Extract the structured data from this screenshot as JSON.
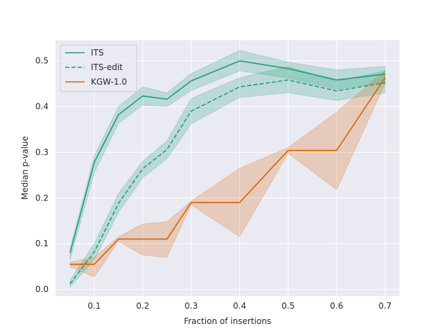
{
  "chart_data": {
    "type": "line",
    "title": "",
    "xlabel": "Fraction of insertions",
    "ylabel": "Median p-value",
    "xlim": [
      0.02,
      0.73
    ],
    "ylim": [
      -0.015,
      0.545
    ],
    "xticks": [
      0.1,
      0.2,
      0.3,
      0.4,
      0.5,
      0.6,
      0.7
    ],
    "xtick_labels": [
      "0.1",
      "0.2",
      "0.3",
      "0.4",
      "0.5",
      "0.6",
      "0.7"
    ],
    "yticks": [
      0.0,
      0.1,
      0.2,
      0.3,
      0.4,
      0.5
    ],
    "ytick_labels": [
      "0.0",
      "0.1",
      "0.2",
      "0.3",
      "0.4",
      "0.5"
    ],
    "grid": true,
    "legend_position": "top-left",
    "x": [
      0.05,
      0.1,
      0.15,
      0.2,
      0.25,
      0.3,
      0.4,
      0.5,
      0.6,
      0.7
    ],
    "series": [
      {
        "name": "ITS",
        "color": "#1b9e77",
        "dash": "solid",
        "values": [
          0.08,
          0.278,
          0.382,
          0.423,
          0.416,
          0.456,
          0.5,
          0.483,
          0.458,
          0.471
        ],
        "lower": [
          0.065,
          0.255,
          0.363,
          0.403,
          0.4,
          0.435,
          0.478,
          0.462,
          0.438,
          0.452
        ],
        "upper": [
          0.09,
          0.292,
          0.4,
          0.443,
          0.43,
          0.472,
          0.523,
          0.497,
          0.48,
          0.488
        ]
      },
      {
        "name": "ITS-edit",
        "color": "#1b9e77",
        "dash": "dashed",
        "values": [
          0.012,
          0.082,
          0.188,
          0.264,
          0.306,
          0.39,
          0.443,
          0.458,
          0.434,
          0.452
        ],
        "lower": [
          0.005,
          0.065,
          0.168,
          0.244,
          0.286,
          0.362,
          0.42,
          0.43,
          0.413,
          0.43
        ],
        "upper": [
          0.02,
          0.1,
          0.21,
          0.28,
          0.325,
          0.418,
          0.463,
          0.488,
          0.455,
          0.478
        ]
      },
      {
        "name": "KGW-1.0",
        "color": "#d95f02",
        "dash": "solid",
        "values": [
          0.055,
          0.055,
          0.11,
          0.11,
          0.11,
          0.19,
          0.19,
          0.304,
          0.304,
          0.463
        ],
        "lower": [
          0.05,
          0.027,
          0.105,
          0.075,
          0.07,
          0.185,
          0.115,
          0.298,
          0.218,
          0.45
        ],
        "upper": [
          0.06,
          0.07,
          0.115,
          0.143,
          0.148,
          0.193,
          0.265,
          0.31,
          0.388,
          0.478
        ]
      }
    ]
  }
}
